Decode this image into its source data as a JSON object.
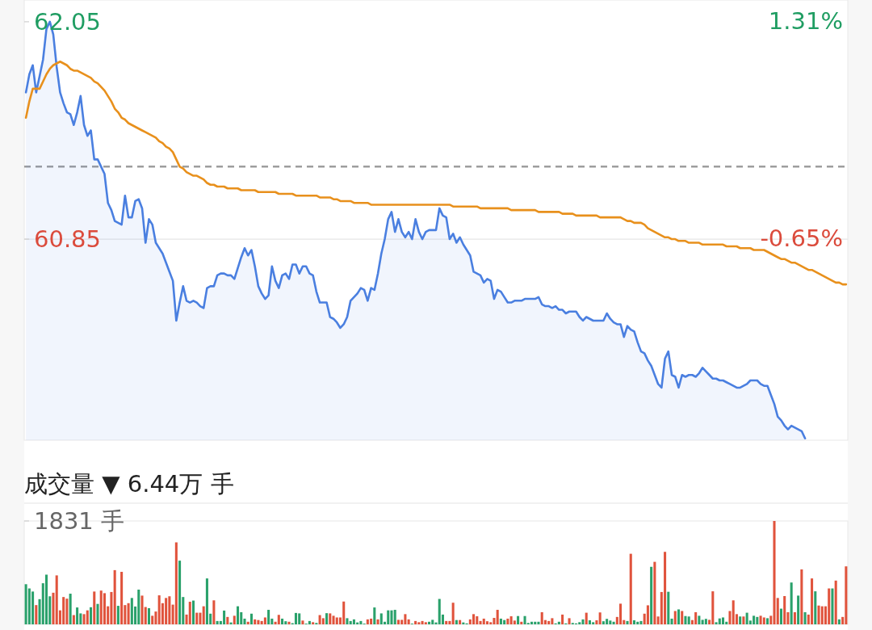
{
  "chart_data": [
    {
      "type": "line",
      "categories": [
        null,
        null,
        null,
        null,
        null,
        null,
        null,
        null,
        null,
        null,
        null,
        null,
        null,
        null,
        null,
        null,
        null,
        null,
        null,
        null,
        null,
        null,
        null,
        null,
        null,
        null,
        null,
        null,
        null,
        null,
        null,
        null,
        null,
        null,
        null,
        null,
        null,
        null,
        null,
        null,
        null,
        null,
        null,
        null,
        null,
        null,
        null,
        null,
        null,
        null,
        null,
        null,
        null,
        null,
        null,
        null,
        null,
        null,
        null,
        null,
        null,
        null,
        null,
        null,
        null,
        null,
        null,
        null,
        null,
        null,
        null,
        null,
        null,
        null,
        null,
        null,
        null,
        null,
        null,
        null,
        null,
        null,
        null,
        null,
        null,
        null,
        null,
        null,
        null,
        null,
        null,
        null,
        null,
        null,
        null,
        null,
        null,
        null,
        null,
        null,
        null,
        null,
        null,
        null,
        null,
        null,
        null,
        null,
        null,
        null,
        null,
        null,
        null,
        null,
        null,
        null,
        null,
        null,
        null,
        null,
        null,
        null,
        null,
        null,
        null,
        null,
        null,
        null,
        null,
        null,
        null,
        null,
        null,
        null,
        null,
        null,
        null,
        null,
        null,
        null,
        null,
        null,
        null,
        null,
        null,
        null,
        null,
        null,
        null,
        null,
        null,
        null,
        null,
        null,
        null,
        null,
        null,
        null,
        null,
        null,
        null,
        null,
        null,
        null,
        null,
        null,
        null,
        null,
        null,
        null,
        null,
        null,
        null,
        null,
        null,
        null,
        null,
        null,
        null,
        null,
        null,
        null,
        null,
        null,
        null,
        null,
        null,
        null,
        null,
        null,
        null,
        null,
        null,
        null,
        null,
        null,
        null,
        null,
        null,
        null,
        null,
        null,
        null,
        null,
        null,
        null,
        null,
        null,
        null,
        null,
        null,
        null,
        null,
        null,
        null,
        null,
        null,
        null,
        null,
        null,
        null,
        null,
        null,
        null,
        null,
        null,
        null,
        null,
        null,
        null,
        null,
        null,
        null,
        null,
        null,
        null,
        null,
        null,
        null,
        null,
        null
      ],
      "ylim": [
        59.74,
        62.17
      ],
      "yticks": [
        62.05,
        60.85
      ],
      "y2lim": [
        -2.47,
        1.5
      ],
      "y2ticks": [
        {
          "value": 1.31,
          "label": "1.31%"
        },
        {
          "value": -0.65,
          "label": "-0.65%"
        }
      ],
      "grid": false,
      "tick_labels": "y",
      "ref_lines": [
        {
          "axis": "y",
          "value": 61.25,
          "color": "#9e9e9e",
          "line_style": "dashed"
        },
        {
          "axis": "y",
          "value": 60.85,
          "color": "#e6e6e6",
          "line_style": "solid"
        }
      ],
      "series": [
        {
          "type": "area",
          "color": "#4a7fe0",
          "values": [
            61.66,
            61.76,
            61.81,
            61.66,
            61.75,
            61.84,
            62.01,
            62.05,
            61.98,
            61.8,
            61.66,
            61.6,
            61.55,
            61.54,
            61.48,
            61.55,
            61.64,
            61.48,
            61.42,
            61.45,
            61.29,
            61.29,
            61.25,
            61.21,
            61.05,
            61.01,
            60.95,
            60.94,
            60.93,
            61.09,
            60.97,
            60.97,
            61.06,
            61.07,
            61.02,
            60.83,
            60.96,
            60.93,
            60.83,
            60.8,
            60.77,
            60.72,
            60.67,
            60.62,
            60.4,
            60.5,
            60.59,
            60.51,
            60.5,
            60.51,
            60.5,
            60.48,
            60.47,
            60.58,
            60.59,
            60.59,
            60.65,
            60.66,
            60.66,
            60.65,
            60.65,
            60.63,
            60.69,
            60.75,
            60.8,
            60.76,
            60.79,
            60.7,
            60.59,
            60.55,
            60.52,
            60.54,
            60.7,
            60.62,
            60.58,
            60.65,
            60.66,
            60.63,
            60.71,
            60.71,
            60.66,
            60.7,
            60.7,
            60.66,
            60.65,
            60.56,
            60.5,
            60.5,
            60.5,
            60.42,
            60.41,
            60.39,
            60.36,
            60.38,
            60.42,
            60.51,
            60.53,
            60.55,
            60.58,
            60.57,
            60.51,
            60.58,
            60.57,
            60.66,
            60.77,
            60.85,
            60.96,
            61.0,
            60.89,
            60.96,
            60.89,
            60.86,
            60.89,
            60.85,
            60.96,
            60.89,
            60.85,
            60.89,
            60.9,
            60.9,
            60.9,
            61.02,
            60.98,
            60.97,
            60.85,
            60.88,
            60.83,
            60.86,
            60.82,
            60.79,
            60.76,
            60.67,
            60.66,
            60.65,
            60.61,
            60.63,
            60.62,
            60.52,
            60.57,
            60.56,
            60.53,
            60.5,
            60.5,
            60.51,
            60.51,
            60.51,
            60.52,
            60.52,
            60.52,
            60.52,
            60.53,
            60.49,
            60.48,
            60.48,
            60.47,
            60.48,
            60.46,
            60.46,
            60.44,
            60.45,
            60.45,
            60.45,
            60.42,
            60.4,
            60.42,
            60.41,
            60.4,
            60.4,
            60.4,
            60.4,
            60.44,
            60.41,
            60.39,
            60.38,
            60.38,
            60.31,
            60.37,
            60.35,
            60.34,
            60.28,
            60.23,
            60.22,
            60.18,
            60.15,
            60.1,
            60.05,
            60.03,
            60.19,
            60.23,
            60.1,
            60.09,
            60.03,
            60.1,
            60.09,
            60.1,
            60.1,
            60.09,
            60.11,
            60.14,
            60.12,
            60.1,
            60.08,
            60.08,
            60.07,
            60.07,
            60.06,
            60.05,
            60.04,
            60.03,
            60.03,
            60.04,
            60.05,
            60.07,
            60.07,
            60.07,
            60.05,
            60.04,
            60.04,
            59.99,
            59.94,
            59.87,
            59.85,
            59.82,
            59.8,
            59.82,
            59.81,
            59.8,
            59.79,
            59.75,
            null,
            null,
            null,
            null,
            null,
            null,
            null,
            null,
            null,
            null,
            null,
            null
          ]
        },
        {
          "color": "#e8901c",
          "values": [
            61.52,
            61.61,
            61.68,
            61.68,
            61.68,
            61.72,
            61.76,
            61.79,
            61.81,
            61.82,
            61.83,
            61.82,
            61.81,
            61.79,
            61.78,
            61.78,
            61.77,
            61.76,
            61.75,
            61.74,
            61.72,
            61.71,
            61.69,
            61.67,
            61.64,
            61.61,
            61.57,
            61.55,
            61.52,
            61.51,
            61.49,
            61.48,
            61.47,
            61.46,
            61.45,
            61.44,
            61.43,
            61.42,
            61.41,
            61.39,
            61.38,
            61.36,
            61.35,
            61.33,
            61.29,
            61.25,
            61.24,
            61.22,
            61.21,
            61.2,
            61.2,
            61.19,
            61.18,
            61.16,
            61.15,
            61.15,
            61.14,
            61.14,
            61.14,
            61.13,
            61.13,
            61.13,
            61.13,
            61.12,
            61.12,
            61.12,
            61.12,
            61.12,
            61.11,
            61.11,
            61.11,
            61.11,
            61.11,
            61.11,
            61.1,
            61.1,
            61.1,
            61.1,
            61.1,
            61.09,
            61.09,
            61.09,
            61.09,
            61.09,
            61.09,
            61.09,
            61.08,
            61.08,
            61.08,
            61.08,
            61.07,
            61.07,
            61.06,
            61.06,
            61.06,
            61.06,
            61.05,
            61.05,
            61.05,
            61.05,
            61.05,
            61.04,
            61.04,
            61.04,
            61.04,
            61.04,
            61.04,
            61.04,
            61.04,
            61.04,
            61.04,
            61.04,
            61.04,
            61.04,
            61.04,
            61.04,
            61.04,
            61.04,
            61.04,
            61.04,
            61.04,
            61.04,
            61.04,
            61.04,
            61.04,
            61.03,
            61.03,
            61.03,
            61.03,
            61.03,
            61.03,
            61.03,
            61.03,
            61.02,
            61.02,
            61.02,
            61.02,
            61.02,
            61.02,
            61.02,
            61.02,
            61.02,
            61.01,
            61.01,
            61.01,
            61.01,
            61.01,
            61.01,
            61.01,
            61.01,
            61.0,
            61.0,
            61.0,
            61.0,
            61.0,
            61.0,
            61.0,
            60.99,
            60.99,
            60.99,
            60.99,
            60.98,
            60.98,
            60.98,
            60.98,
            60.98,
            60.98,
            60.98,
            60.97,
            60.97,
            60.97,
            60.97,
            60.97,
            60.97,
            60.97,
            60.96,
            60.95,
            60.95,
            60.94,
            60.94,
            60.94,
            60.93,
            60.91,
            60.9,
            60.89,
            60.88,
            60.87,
            60.86,
            60.86,
            60.85,
            60.85,
            60.84,
            60.84,
            60.84,
            60.83,
            60.83,
            60.83,
            60.83,
            60.82,
            60.82,
            60.82,
            60.82,
            60.82,
            60.82,
            60.82,
            60.81,
            60.81,
            60.81,
            60.81,
            60.8,
            60.8,
            60.8,
            60.8,
            60.79,
            60.79,
            60.79,
            60.79,
            60.78,
            60.77,
            60.76,
            60.75,
            60.74,
            60.74,
            60.73,
            60.72,
            60.72,
            60.71,
            60.7,
            60.69,
            60.68,
            60.68,
            60.67,
            60.66,
            60.65,
            60.64,
            60.63,
            60.62,
            60.61,
            60.61,
            60.6,
            60.6
          ]
        }
      ]
    },
    {
      "type": "bar",
      "title": "成交量 ▼ 6.44万 手",
      "ylim": [
        0,
        1831
      ],
      "yticks": [
        {
          "value": 1831,
          "label": "1831 手"
        }
      ],
      "tick_labels": "y",
      "grid": false,
      "categories": [
        null,
        null,
        null,
        null,
        null,
        null,
        null,
        null,
        null,
        null,
        null,
        null,
        null,
        null,
        null,
        null,
        null,
        null,
        null,
        null,
        null,
        null,
        null,
        null,
        null,
        null,
        null,
        null,
        null,
        null,
        null,
        null,
        null,
        null,
        null,
        null,
        null,
        null,
        null,
        null,
        null,
        null,
        null,
        null,
        null,
        null,
        null,
        null,
        null,
        null,
        null,
        null,
        null,
        null,
        null,
        null,
        null,
        null,
        null,
        null,
        null,
        null,
        null,
        null,
        null,
        null,
        null,
        null,
        null,
        null,
        null,
        null,
        null,
        null,
        null,
        null,
        null,
        null,
        null,
        null,
        null,
        null,
        null,
        null,
        null,
        null,
        null,
        null,
        null,
        null,
        null,
        null,
        null,
        null,
        null,
        null,
        null,
        null,
        null,
        null,
        null,
        null,
        null,
        null,
        null,
        null,
        null,
        null,
        null,
        null,
        null,
        null,
        null,
        null,
        null,
        null,
        null,
        null,
        null,
        null,
        null,
        null,
        null,
        null,
        null,
        null,
        null,
        null,
        null,
        null,
        null,
        null,
        null,
        null,
        null,
        null,
        null,
        null,
        null,
        null,
        null,
        null,
        null,
        null,
        null,
        null,
        null,
        null,
        null,
        null,
        null,
        null,
        null,
        null,
        null,
        null,
        null,
        null,
        null,
        null,
        null,
        null,
        null,
        null,
        null,
        null,
        null,
        null,
        null,
        null,
        null,
        null,
        null,
        null,
        null,
        null,
        null,
        null,
        null,
        null,
        null,
        null,
        null,
        null,
        null,
        null,
        null,
        null,
        null,
        null,
        null,
        null,
        null,
        null,
        null,
        null,
        null,
        null,
        null,
        null,
        null,
        null,
        null,
        null,
        null,
        null,
        null,
        null,
        null,
        null,
        null,
        null,
        null,
        null,
        null,
        null,
        null,
        null,
        null,
        null,
        null,
        null,
        null,
        null,
        null,
        null,
        null,
        null,
        null,
        null,
        null,
        null,
        null,
        null,
        null,
        null,
        null,
        null,
        null,
        null,
        null
      ],
      "values": [
        711,
        636,
        581,
        341,
        446,
        728,
        880,
        497,
        560,
        867,
        248,
        484,
        455,
        543,
        164,
        299,
        194,
        181,
        248,
        303,
        581,
        362,
        598,
        552,
        320,
        573,
        960,
        328,
        930,
        341,
        375,
        467,
        316,
        615,
        509,
        307,
        286,
        152,
        227,
        514,
        375,
        467,
        497,
        349,
        1452,
        1128,
        484,
        173,
        400,
        421,
        206,
        206,
        320,
        813,
        189,
        425,
        59,
        59,
        244,
        131,
        34,
        152,
        320,
        215,
        101,
        46,
        189,
        88,
        76,
        59,
        122,
        257,
        101,
        46,
        168,
        101,
        55,
        46,
        21,
        202,
        194,
        67,
        13,
        59,
        38,
        25,
        164,
        109,
        198,
        194,
        152,
        122,
        122,
        404,
        109,
        59,
        88,
        34,
        59,
        13,
        88,
        101,
        299,
        88,
        194,
        46,
        248,
        248,
        257,
        80,
        80,
        181,
        88,
        13,
        59,
        38,
        59,
        38,
        46,
        80,
        34,
        450,
        173,
        59,
        59,
        383,
        76,
        76,
        34,
        17,
        88,
        181,
        143,
        59,
        101,
        55,
        38,
        114,
        257,
        101,
        76,
        101,
        143,
        67,
        147,
        46,
        147,
        25,
        46,
        46,
        46,
        215,
        76,
        59,
        109,
        17,
        46,
        173,
        17,
        109,
        25,
        17,
        38,
        88,
        206,
        72,
        38,
        72,
        211,
        55,
        97,
        67,
        46,
        131,
        366,
        76,
        59,
        1250,
        72,
        46,
        59,
        189,
        337,
        1019,
        1107,
        139,
        573,
        1284,
        577,
        101,
        236,
        265,
        236,
        147,
        139,
        76,
        215,
        152,
        80,
        97,
        80,
        585,
        38,
        105,
        122,
        46,
        236,
        425,
        181,
        139,
        139,
        206,
        67,
        152,
        131,
        152,
        122,
        109,
        152,
        1831,
        467,
        278,
        501,
        215,
        741,
        215,
        509,
        973,
        215,
        173,
        813,
        585,
        333,
        320,
        320,
        636,
        636,
        775,
        88,
        131,
        1027
      ],
      "colors": [
        "G",
        "G",
        "G",
        "R",
        "G",
        "G",
        "G",
        "G",
        "R",
        "R",
        "R",
        "R",
        "R",
        "G",
        "R",
        "G",
        "G",
        "R",
        "R",
        "G",
        "R",
        "G",
        "R",
        "R",
        "R",
        "R",
        "R",
        "G",
        "R",
        "R",
        "R",
        "G",
        "G",
        "G",
        "R",
        "R",
        "G",
        "R",
        "R",
        "R",
        "R",
        "R",
        "R",
        "R",
        "R",
        "G",
        "G",
        "R",
        "R",
        "G",
        "R",
        "R",
        "R",
        "G",
        "G",
        "R",
        "G",
        "G",
        "G",
        "R",
        "G",
        "R",
        "G",
        "G",
        "G",
        "R",
        "G",
        "R",
        "R",
        "R",
        "R",
        "G",
        "G",
        "R",
        "R",
        "G",
        "G",
        "R",
        "G",
        "G",
        "G",
        "R",
        "G",
        "G",
        "R",
        "G",
        "R",
        "R",
        "G",
        "R",
        "R",
        "R",
        "R",
        "R",
        "G",
        "G",
        "G",
        "G",
        "G",
        "G",
        "R",
        "R",
        "G",
        "R",
        "G",
        "G",
        "G",
        "G",
        "G",
        "R",
        "R",
        "R",
        "R",
        "G",
        "R",
        "R",
        "R",
        "R",
        "G",
        "G",
        "G",
        "G",
        "G",
        "R",
        "R",
        "R",
        "G",
        "R",
        "G",
        "G",
        "R",
        "R",
        "R",
        "R",
        "R",
        "R",
        "R",
        "R",
        "R",
        "G",
        "G",
        "R",
        "R",
        "R",
        "G",
        "R",
        "G",
        "G",
        "G",
        "G",
        "G",
        "R",
        "R",
        "R",
        "R",
        "G",
        "G",
        "R",
        "G",
        "R",
        "G",
        "G",
        "G",
        "G",
        "R",
        "G",
        "G",
        "R",
        "R",
        "G",
        "G",
        "G",
        "G",
        "R",
        "R",
        "R",
        "G",
        "R",
        "G",
        "G",
        "G",
        "R",
        "R",
        "G",
        "R",
        "R",
        "R",
        "R",
        "G",
        "G",
        "R",
        "G",
        "R",
        "G",
        "G",
        "R",
        "R",
        "G",
        "G",
        "G",
        "R",
        "R",
        "G",
        "G",
        "G",
        "G",
        "R",
        "R",
        "R",
        "G",
        "R",
        "G",
        "G",
        "G",
        "G",
        "R",
        "R",
        "G",
        "R",
        "R",
        "R",
        "G",
        "R",
        "R",
        "G",
        "R",
        "G",
        "R",
        "G",
        "R",
        "R",
        "G",
        "R",
        "R",
        "R",
        "R",
        "G",
        "R",
        "G",
        "R",
        "R"
      ]
    }
  ]
}
